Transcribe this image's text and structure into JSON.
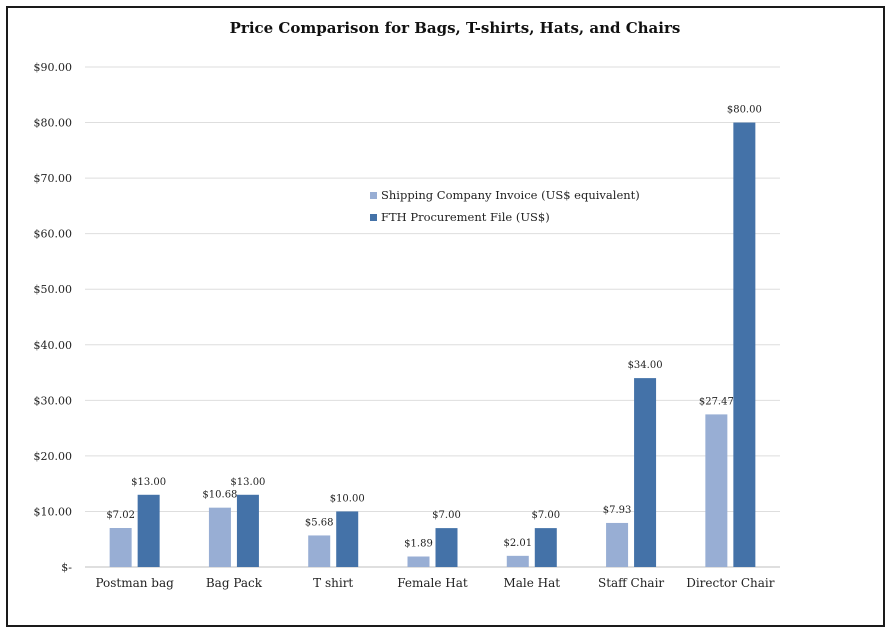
{
  "chart_data": {
    "type": "bar",
    "title": "Price Comparison for Bags, T-shirts, Hats, and Chairs",
    "xlabel": "",
    "ylabel": "",
    "categories": [
      "Postman bag",
      "Bag Pack",
      "T shirt",
      "Female Hat",
      "Male Hat",
      "Staff Chair",
      "Director Chair"
    ],
    "series": [
      {
        "name": "Shipping Company Invoice (US$ equivalent)",
        "color": "#98aed4",
        "values": [
          7.02,
          10.68,
          5.68,
          1.89,
          2.01,
          7.93,
          27.47
        ],
        "labels": [
          "$7.02",
          "$10.68",
          "$5.68",
          "$1.89",
          "$2.01",
          "$7.93",
          "$27.47"
        ]
      },
      {
        "name": "FTH Procurement File (US$)",
        "color": "#4472a8",
        "values": [
          13.0,
          13.0,
          10.0,
          7.0,
          7.0,
          34.0,
          80.0
        ],
        "labels": [
          "$13.00",
          "$13.00",
          "$10.00",
          "$7.00",
          "$7.00",
          "$34.00",
          "$80.00"
        ]
      }
    ],
    "ylim": [
      0,
      90
    ],
    "yticks": [
      0,
      10,
      20,
      30,
      40,
      50,
      60,
      70,
      80,
      90
    ],
    "ytick_labels": [
      "$-",
      "$10.00",
      "$20.00",
      "$30.00",
      "$40.00",
      "$50.00",
      "$60.00",
      "$70.00",
      "$80.00",
      "$90.00"
    ],
    "grid": true,
    "legend_position": "center"
  }
}
